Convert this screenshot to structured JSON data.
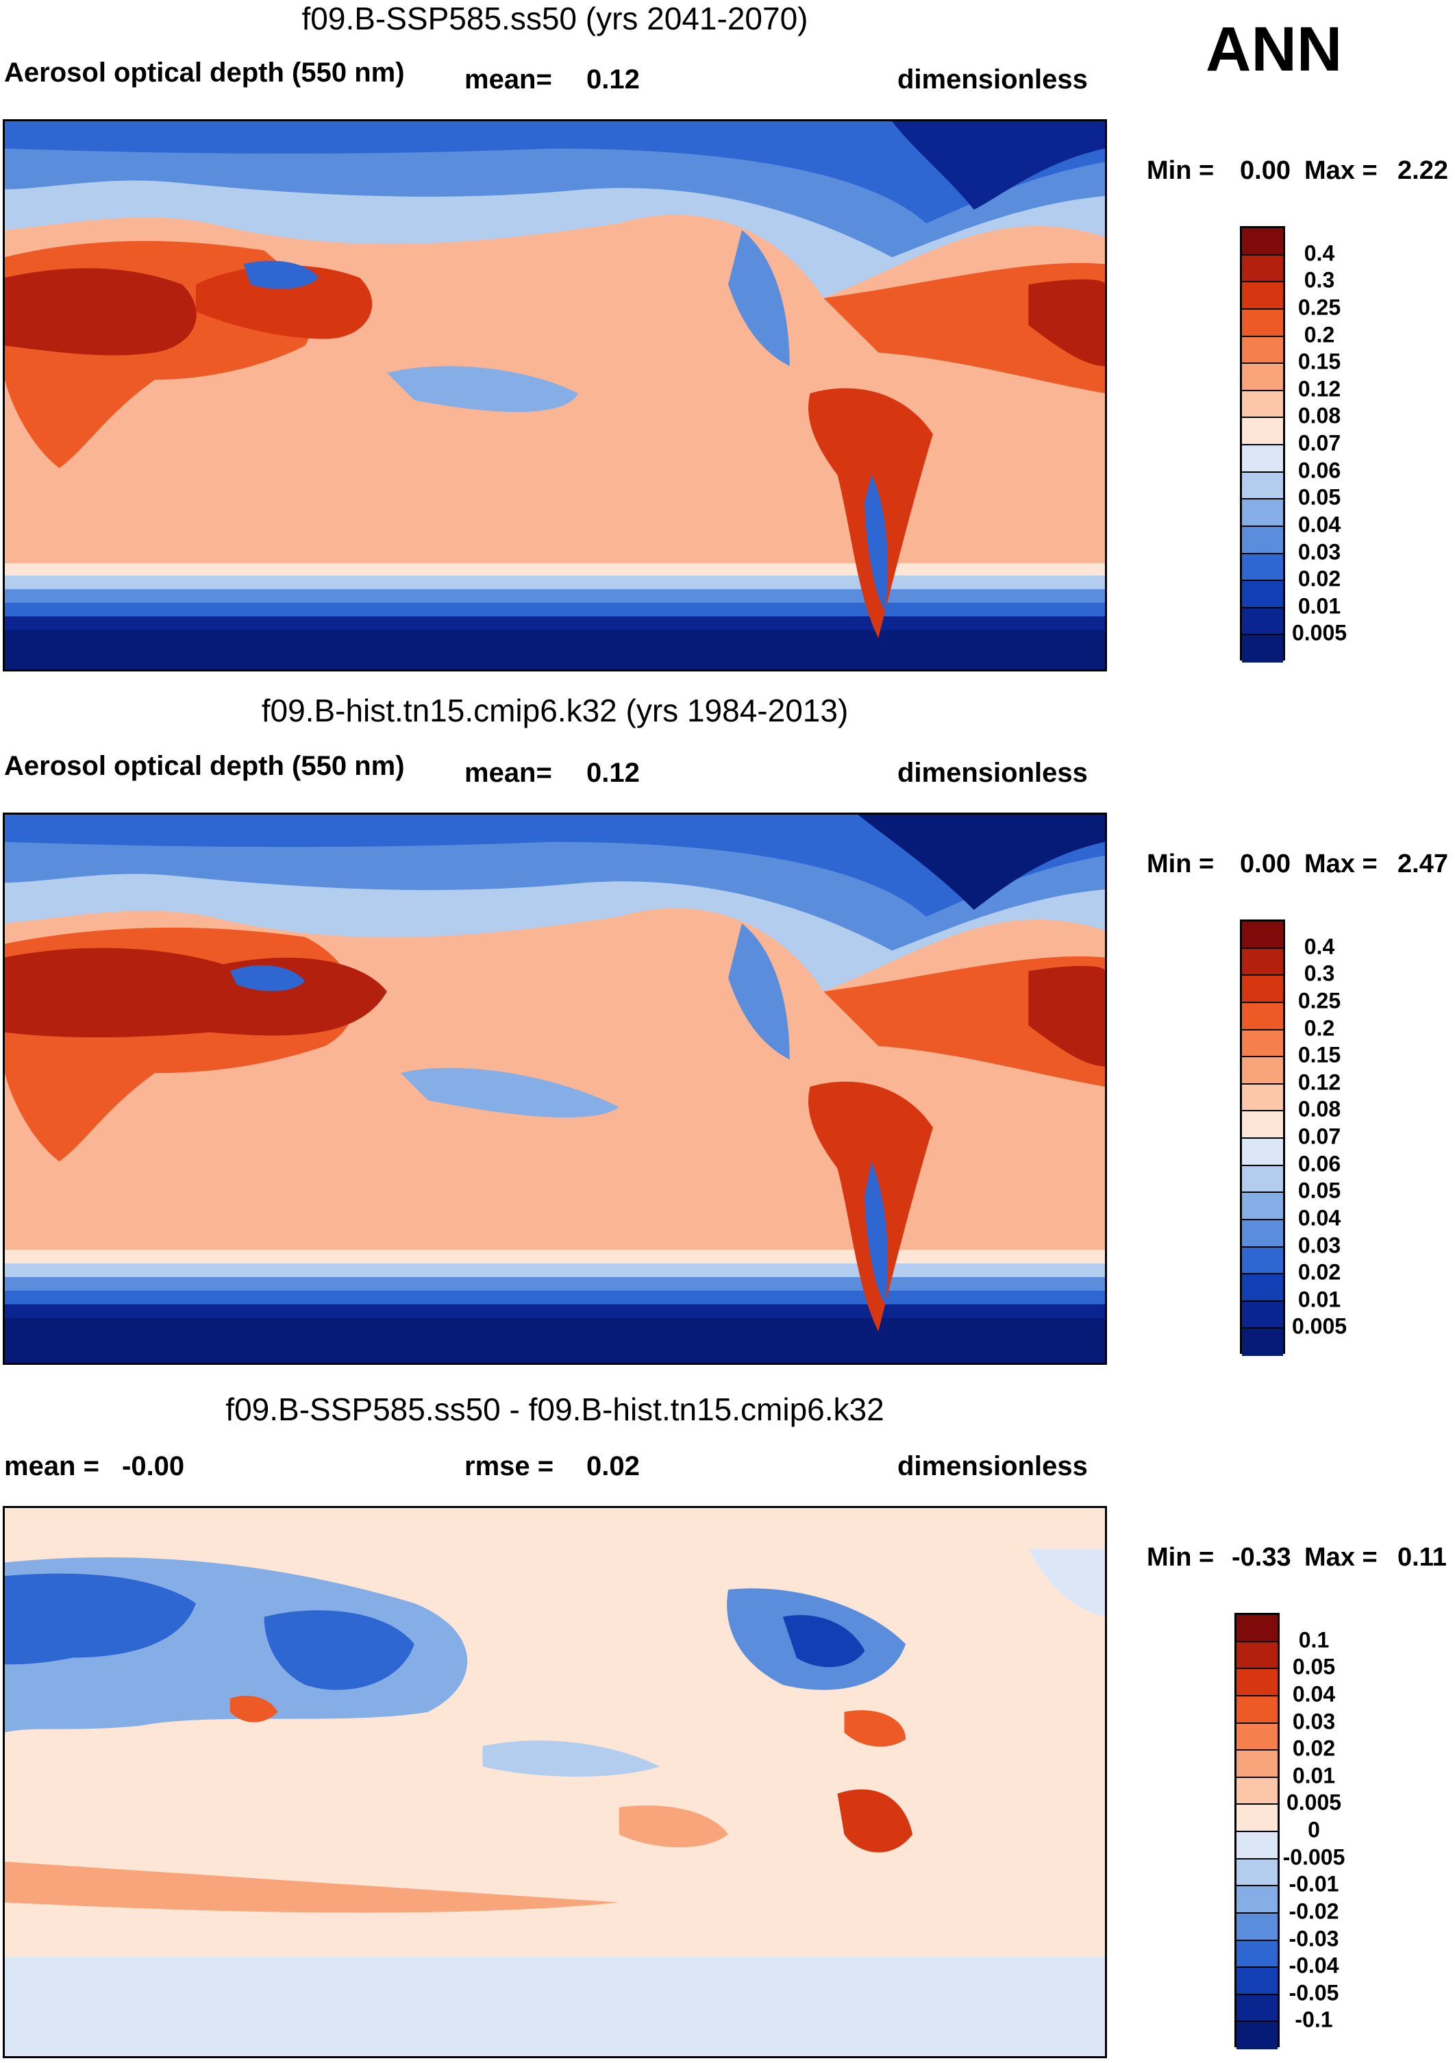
{
  "season": "ANN",
  "panels": [
    {
      "id": "test",
      "title": "f09.B-SSP585.ss50 (yrs 2041-2070)",
      "left_label": "Aerosol optical depth (550 nm)",
      "mid_label": "mean=",
      "mid_value": "0.12",
      "units": "dimensionless",
      "min_label": "Min =",
      "min_value": "0.00",
      "max_label": "Max =",
      "max_value": "2.22",
      "colorbar_labels": [
        "0.4",
        "0.3",
        "0.25",
        "0.2",
        "0.15",
        "0.12",
        "0.08",
        "0.07",
        "0.06",
        "0.05",
        "0.04",
        "0.03",
        "0.02",
        "0.01",
        "0.005"
      ]
    },
    {
      "id": "ref",
      "title": "f09.B-hist.tn15.cmip6.k32 (yrs 1984-2013)",
      "left_label": "Aerosol optical depth (550 nm)",
      "mid_label": "mean=",
      "mid_value": "0.12",
      "units": "dimensionless",
      "min_label": "Min =",
      "min_value": "0.00",
      "max_label": "Max =",
      "max_value": "2.47",
      "colorbar_labels": [
        "0.4",
        "0.3",
        "0.25",
        "0.2",
        "0.15",
        "0.12",
        "0.08",
        "0.07",
        "0.06",
        "0.05",
        "0.04",
        "0.03",
        "0.02",
        "0.01",
        "0.005"
      ]
    },
    {
      "id": "diff",
      "title": "f09.B-SSP585.ss50 - f09.B-hist.tn15.cmip6.k32",
      "left_label": "mean =",
      "left_value": "-0.00",
      "mid_label": "rmse =",
      "mid_value": "0.02",
      "units": "dimensionless",
      "min_label": "Min =",
      "min_value": "-0.33",
      "max_label": "Max =",
      "max_value": "0.11",
      "colorbar_labels": [
        "0.1",
        "0.05",
        "0.04",
        "0.03",
        "0.02",
        "0.01",
        "0.005",
        "0",
        "-0.005",
        "-0.01",
        "-0.02",
        "-0.03",
        "-0.04",
        "-0.05",
        "-0.1"
      ]
    }
  ],
  "colors": {
    "abs_scale": [
      "#7f0a0a",
      "#b3200e",
      "#d63610",
      "#ee5a25",
      "#f5804d",
      "#f9a57b",
      "#fbc7a8",
      "#fde6d6",
      "#dbe7f7",
      "#b3cdef",
      "#86aee6",
      "#5a8ddc",
      "#2e66d2",
      "#123fb3",
      "#0a2590",
      "#061a78"
    ],
    "diff_scale": [
      "#7f0a0a",
      "#b3200e",
      "#d63610",
      "#ee5a25",
      "#f5804d",
      "#f9a57b",
      "#fbc7a8",
      "#fde6d6",
      "#dbe7f7",
      "#b3cdef",
      "#86aee6",
      "#5a8ddc",
      "#2e66d2",
      "#123fb3",
      "#0a2590",
      "#061a78"
    ],
    "coast": "#000000"
  }
}
